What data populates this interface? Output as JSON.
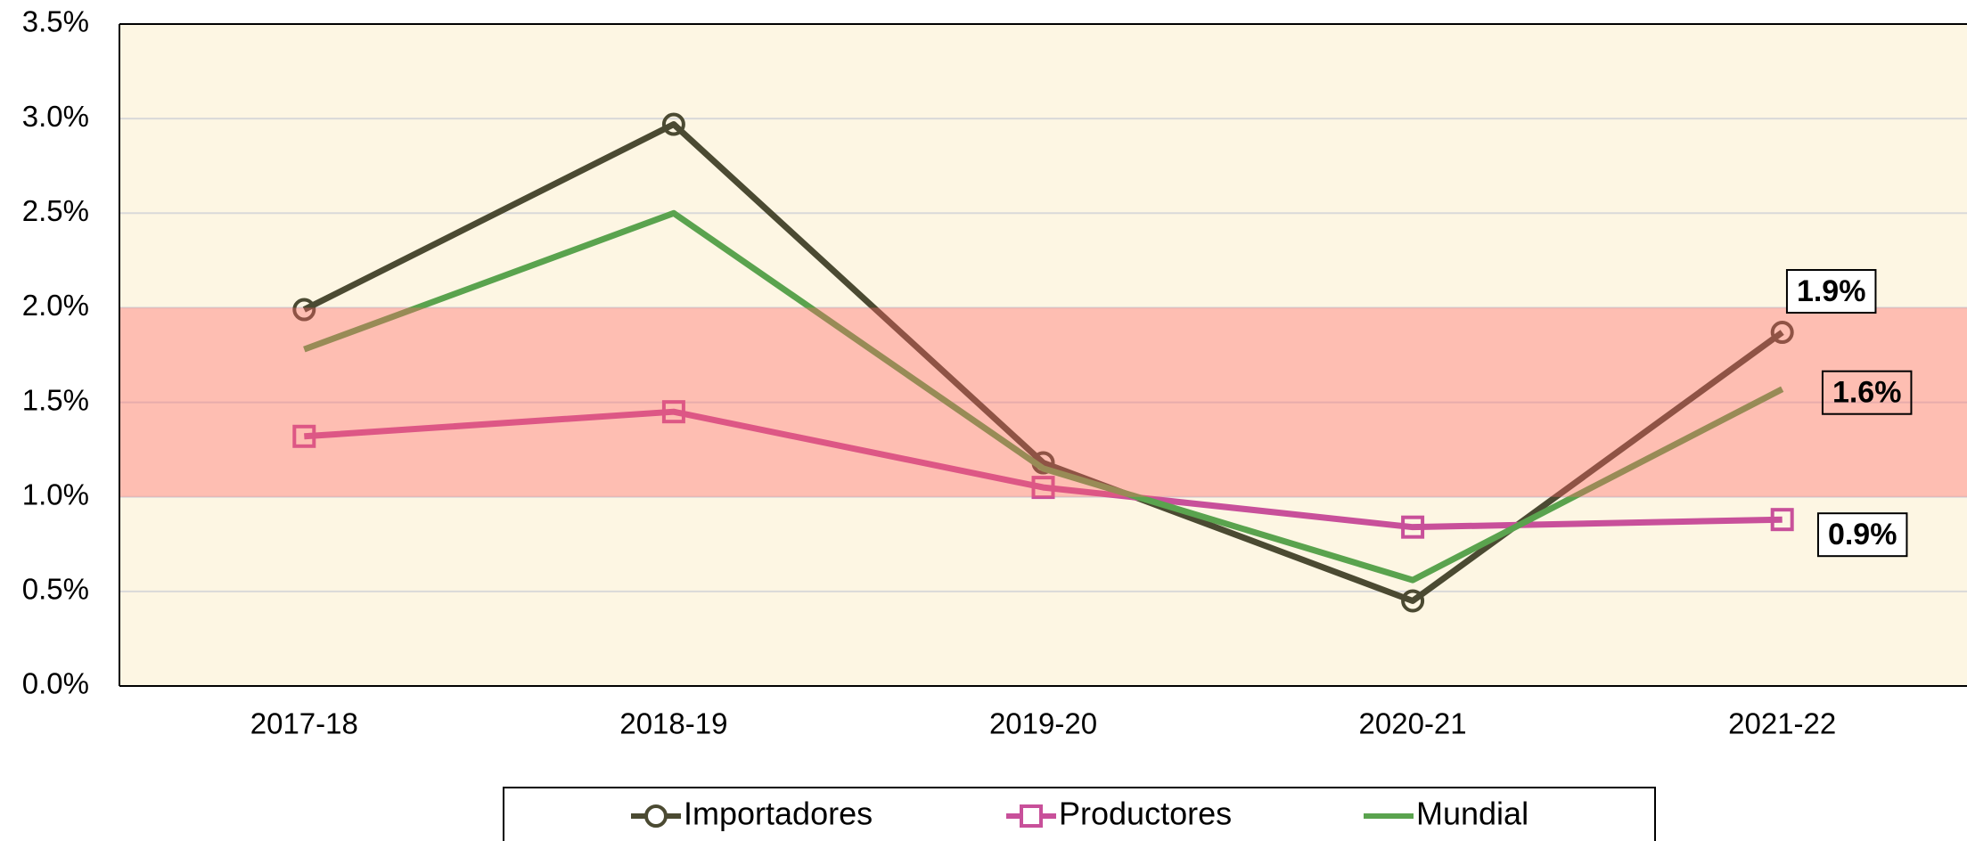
{
  "chart_data": {
    "type": "line",
    "categories": [
      "2017-18",
      "2018-19",
      "2019-20",
      "2020-21",
      "2021-22"
    ],
    "series": [
      {
        "name": "Importadores",
        "color": "#4b4a32",
        "marker": "circle",
        "values": [
          1.99,
          2.97,
          1.18,
          0.45,
          1.87
        ],
        "value_labels": [
          null,
          null,
          null,
          null,
          "1.9%"
        ]
      },
      {
        "name": "Productores",
        "color": "#c8509a",
        "marker": "square",
        "values": [
          1.32,
          1.45,
          1.05,
          0.84,
          0.88
        ],
        "value_labels": [
          null,
          null,
          null,
          null,
          "0.9%"
        ]
      },
      {
        "name": "Mundial",
        "color": "#5aa34e",
        "values": [
          1.78,
          2.5,
          1.15,
          0.56,
          1.57
        ],
        "value_labels": [
          null,
          null,
          null,
          null,
          "1.6%"
        ]
      }
    ],
    "ylim": [
      0,
      3.5
    ],
    "yticks": [
      {
        "value": 0,
        "label": "0.0%"
      },
      {
        "value": 0.5,
        "label": "0.5%"
      },
      {
        "value": 1,
        "label": "1.0%"
      },
      {
        "value": 1.5,
        "label": "1.5%"
      },
      {
        "value": 2,
        "label": "2.0%"
      },
      {
        "value": 2.5,
        "label": "2.5%"
      },
      {
        "value": 3,
        "label": "3.0%"
      },
      {
        "value": 3.5,
        "label": "3.5%"
      }
    ],
    "grid": true,
    "band": [
      1,
      2
    ],
    "legend": "bottom"
  }
}
